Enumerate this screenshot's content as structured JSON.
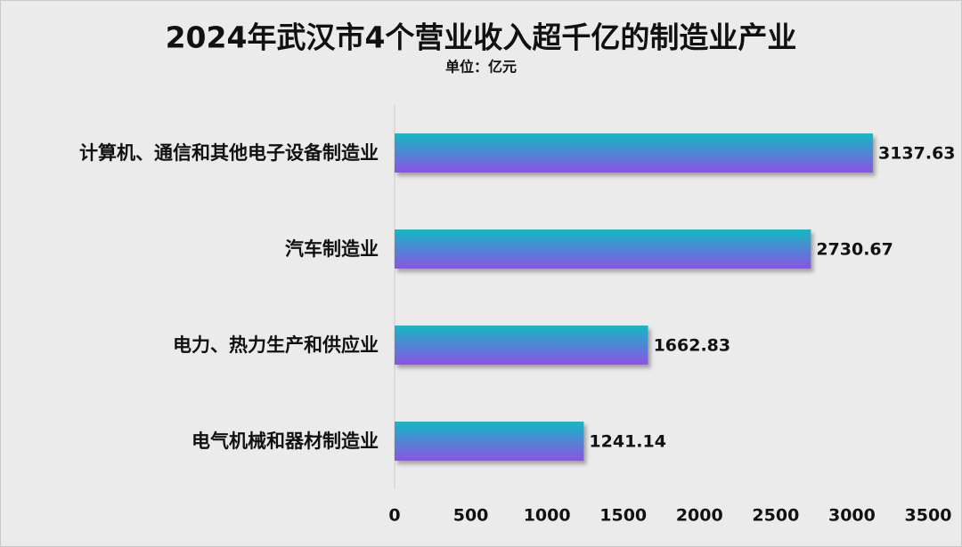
{
  "chart_data": {
    "type": "bar",
    "orientation": "horizontal",
    "title": "2024年武汉市4个营业收入超千亿的制造业产业",
    "subtitle": "单位：亿元",
    "categories": [
      "计算机、通信和其他电子设备制造业",
      "汽车制造业",
      "电力、热力生产和供应业",
      "电气机械和器材制造业"
    ],
    "values": [
      3137.63,
      2730.67,
      1662.83,
      1241.14
    ],
    "gradient": [
      "#16b8c4",
      "#8c52e4"
    ],
    "xlim": [
      0,
      3500
    ],
    "xticks": [
      0,
      500,
      1000,
      1500,
      2000,
      2500,
      3000,
      3500
    ],
    "grid": false
  }
}
